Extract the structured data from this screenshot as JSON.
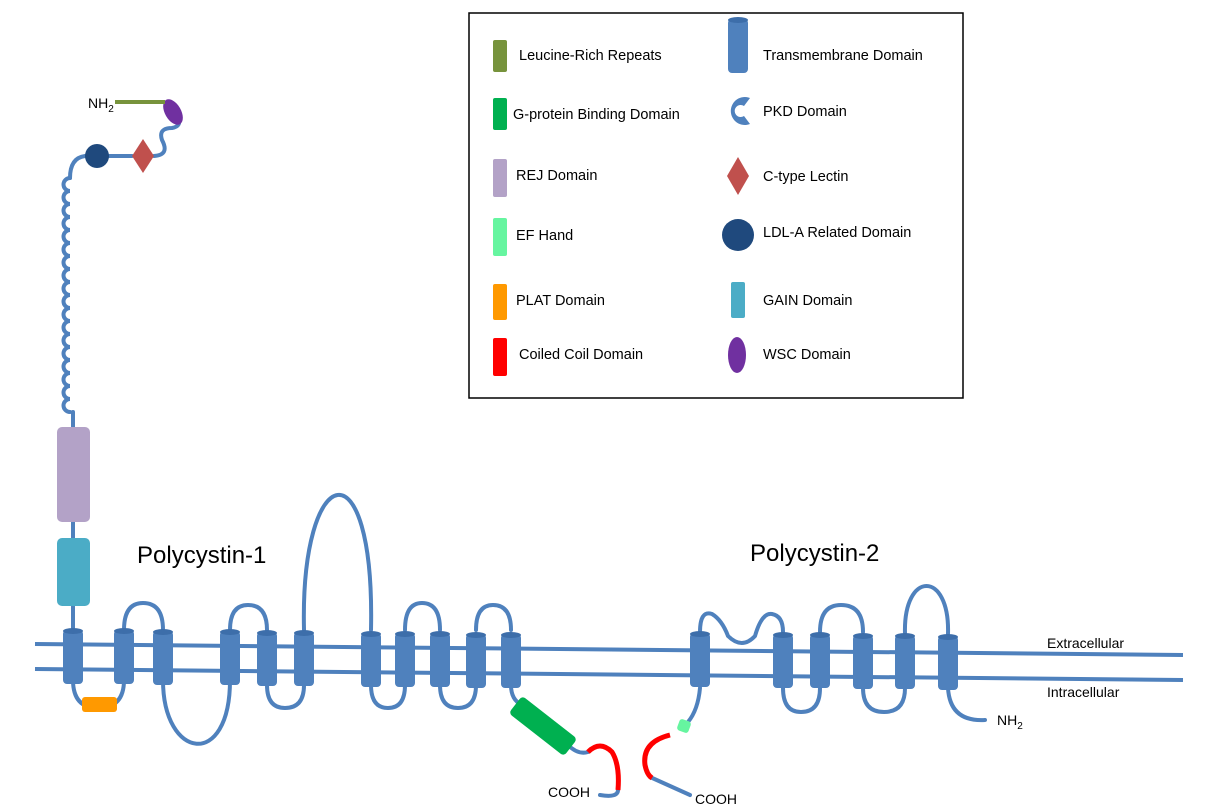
{
  "legend": {
    "items": [
      {
        "label": "Leucine-Rich Repeats"
      },
      {
        "label": "Transmembrane Domain"
      },
      {
        "label": "G-protein Binding Domain"
      },
      {
        "label": "PKD Domain"
      },
      {
        "label": "REJ Domain"
      },
      {
        "label": "C-type Lectin"
      },
      {
        "label": "EF Hand"
      },
      {
        "label": "LDL-A Related Domain"
      },
      {
        "label": "PLAT Domain"
      },
      {
        "label": "GAIN Domain"
      },
      {
        "label": "Coiled Coil Domain"
      },
      {
        "label": "WSC Domain"
      }
    ]
  },
  "proteins": [
    {
      "name": "Polycystin-1",
      "n_terminus": {
        "text": "NH",
        "subscript": "2"
      },
      "c_terminus": "COOH"
    },
    {
      "name": "Polycystin-2",
      "n_terminus": {
        "text": "NH",
        "subscript": "2"
      },
      "c_terminus": "COOH"
    }
  ],
  "membrane": {
    "outer": "Extracellular",
    "inner": "Intracellular"
  }
}
